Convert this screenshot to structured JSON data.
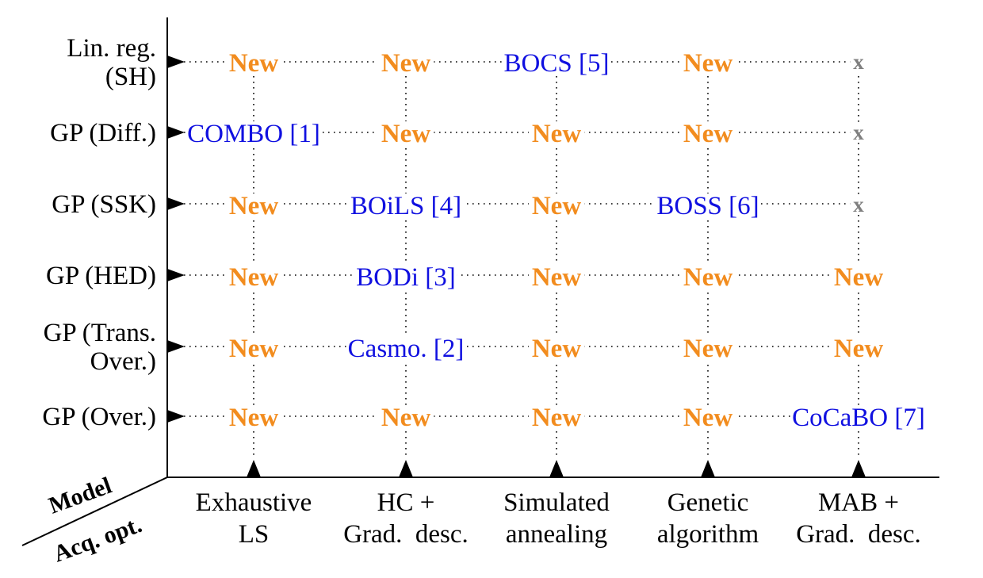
{
  "corner": {
    "model": "Model",
    "acq": "Acq. opt."
  },
  "rows": [
    {
      "lines": [
        "Lin. reg.",
        "(SH)"
      ]
    },
    {
      "lines": [
        "GP (Diff.)"
      ]
    },
    {
      "lines": [
        "GP (SSK)"
      ]
    },
    {
      "lines": [
        "GP (HED)"
      ]
    },
    {
      "lines": [
        "GP (Trans.",
        "Over.)"
      ]
    },
    {
      "lines": [
        "GP (Over.)"
      ]
    }
  ],
  "columns": [
    {
      "lines": [
        "Exhaustive",
        "LS"
      ]
    },
    {
      "lines": [
        "HC +",
        "Grad.  desc."
      ]
    },
    {
      "lines": [
        "Simulated",
        "annealing"
      ]
    },
    {
      "lines": [
        "Genetic",
        "algorithm"
      ]
    },
    {
      "lines": [
        "MAB +",
        "Grad.  desc."
      ]
    }
  ],
  "cells": [
    [
      {
        "text": "New",
        "kind": "new"
      },
      {
        "text": "New",
        "kind": "new"
      },
      {
        "text": "BOCS [5]",
        "kind": "ref"
      },
      {
        "text": "New",
        "kind": "new"
      },
      {
        "text": "x",
        "kind": "na"
      }
    ],
    [
      {
        "text": "COMBO [1]",
        "kind": "ref"
      },
      {
        "text": "New",
        "kind": "new"
      },
      {
        "text": "New",
        "kind": "new"
      },
      {
        "text": "New",
        "kind": "new"
      },
      {
        "text": "x",
        "kind": "na"
      }
    ],
    [
      {
        "text": "New",
        "kind": "new"
      },
      {
        "text": "BOiLS [4]",
        "kind": "ref"
      },
      {
        "text": "New",
        "kind": "new"
      },
      {
        "text": "BOSS [6]",
        "kind": "ref"
      },
      {
        "text": "x",
        "kind": "na"
      }
    ],
    [
      {
        "text": "New",
        "kind": "new"
      },
      {
        "text": "BODi [3]",
        "kind": "ref"
      },
      {
        "text": "New",
        "kind": "new"
      },
      {
        "text": "New",
        "kind": "new"
      },
      {
        "text": "New",
        "kind": "new"
      }
    ],
    [
      {
        "text": "New",
        "kind": "new"
      },
      {
        "text": "Casmo. [2]",
        "kind": "ref"
      },
      {
        "text": "New",
        "kind": "new"
      },
      {
        "text": "New",
        "kind": "new"
      },
      {
        "text": "New",
        "kind": "new"
      }
    ],
    [
      {
        "text": "New",
        "kind": "new"
      },
      {
        "text": "New",
        "kind": "new"
      },
      {
        "text": "New",
        "kind": "new"
      },
      {
        "text": "New",
        "kind": "new"
      },
      {
        "text": "CoCaBO [7]",
        "kind": "ref"
      }
    ]
  ],
  "colors": {
    "new": "#f28c1e",
    "ref": "#1010e0",
    "na": "#7f7f7f",
    "line": "#000000"
  }
}
